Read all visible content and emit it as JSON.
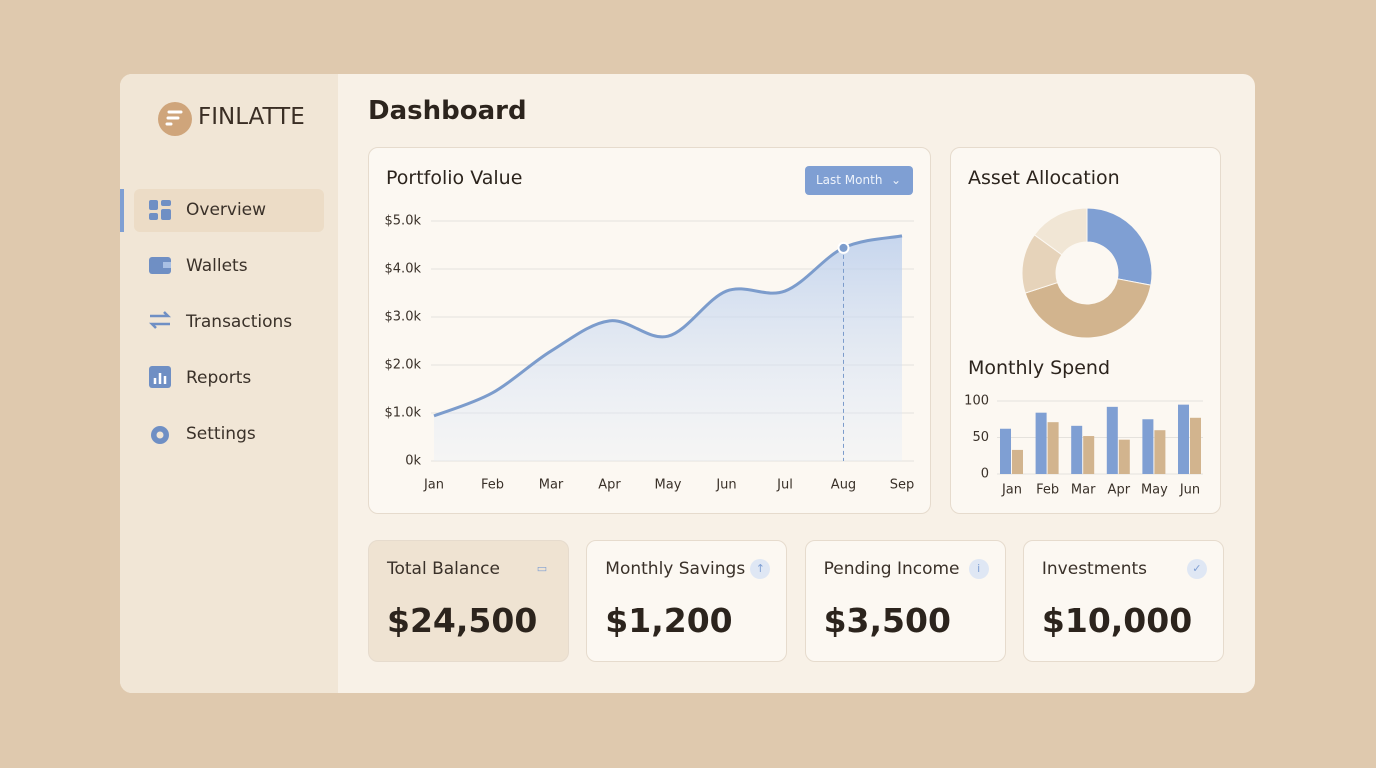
{
  "brand": "FINLATTE",
  "page_title": "Dashboard",
  "nav": [
    "Overview",
    "Wallets",
    "Transactions",
    "Reports",
    "Settings"
  ],
  "portfolio": {
    "title": "Portfolio Value",
    "filter": "Last Month",
    "type": "line",
    "color": "#7c9ccc",
    "categories": [
      "Jan",
      "Feb",
      "Mar",
      "Apr",
      "May",
      "Jun",
      "Jul",
      "Aug",
      "Sep"
    ],
    "values": [
      940,
      1420,
      2290,
      2920,
      2600,
      3540,
      3540,
      4440,
      4690
    ],
    "ylim": [
      0,
      5000
    ],
    "yticks": [
      {
        "value": 0,
        "label": "0k"
      },
      {
        "value": 1000,
        "label": "$1.0k"
      },
      {
        "value": 2000,
        "label": "$2.0k"
      },
      {
        "value": 3000,
        "label": "$3.0k"
      },
      {
        "value": 4000,
        "label": "$4.0k"
      },
      {
        "value": 5000,
        "label": "$5.0k"
      }
    ],
    "grid": true,
    "highlight_index": 7
  },
  "allocation": {
    "title": "Asset Allocation",
    "type": "pie",
    "values": [
      28,
      42,
      15,
      15
    ],
    "colors": [
      "#7f9fd3",
      "#d2b48e",
      "#e6d3ba",
      "#f1e6d5"
    ]
  },
  "spend": {
    "title": "Monthly Spend",
    "type": "bar",
    "categories": [
      "Jan",
      "Feb",
      "Mar",
      "Apr",
      "May",
      "Jun"
    ],
    "series": [
      {
        "color": "#7f9fd3",
        "values": [
          62,
          84,
          66,
          92,
          75,
          95
        ]
      },
      {
        "color": "#d2b48e",
        "values": [
          33,
          71,
          52,
          47,
          60,
          77
        ]
      }
    ],
    "ylim": [
      0,
      100
    ],
    "yticks": [
      0,
      50,
      100
    ],
    "grid": true
  },
  "cards": [
    {
      "label": "Total Balance",
      "value": "$24,500"
    },
    {
      "label": "Monthly Savings",
      "value": "$1,200"
    },
    {
      "label": "Pending Income",
      "value": "$3,500"
    },
    {
      "label": "Investments",
      "value": "$10,000"
    }
  ]
}
